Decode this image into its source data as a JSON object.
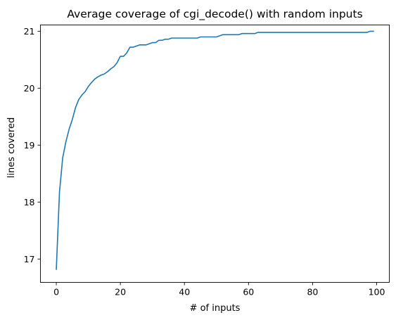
{
  "chart_data": {
    "type": "line",
    "title": "Average coverage of cgi_decode() with random inputs",
    "xlabel": "# of inputs",
    "ylabel": "lines covered",
    "xlim": [
      -4.95,
      103.95
    ],
    "ylim": [
      16.59,
      21.11
    ],
    "grid": false,
    "x_ticks": [
      0,
      20,
      40,
      60,
      80,
      100
    ],
    "y_ticks": [
      17,
      18,
      19,
      20,
      21
    ],
    "series": [
      {
        "color": "#1f77b4",
        "x": [
          0,
          1,
          2,
          3,
          4,
          5,
          6,
          7,
          8,
          9,
          10,
          11,
          12,
          13,
          14,
          15,
          16,
          17,
          18,
          19,
          20,
          21,
          22,
          23,
          24,
          25,
          26,
          27,
          28,
          29,
          30,
          31,
          32,
          33,
          34,
          35,
          36,
          37,
          38,
          39,
          40,
          41,
          42,
          43,
          44,
          45,
          46,
          47,
          48,
          49,
          50,
          51,
          52,
          53,
          54,
          55,
          56,
          57,
          58,
          59,
          60,
          61,
          62,
          63,
          64,
          65,
          66,
          67,
          68,
          69,
          70,
          71,
          72,
          73,
          74,
          75,
          76,
          77,
          78,
          79,
          80,
          81,
          82,
          83,
          84,
          85,
          86,
          87,
          88,
          89,
          90,
          91,
          92,
          93,
          94,
          95,
          96,
          97,
          98,
          99
        ],
        "y": [
          16.82,
          18.18,
          18.78,
          19.06,
          19.28,
          19.45,
          19.66,
          19.8,
          19.88,
          19.94,
          20.03,
          20.1,
          20.16,
          20.2,
          20.23,
          20.25,
          20.29,
          20.34,
          20.38,
          20.45,
          20.56,
          20.56,
          20.62,
          20.72,
          20.72,
          20.74,
          20.76,
          20.76,
          20.76,
          20.78,
          20.8,
          20.8,
          20.84,
          20.84,
          20.86,
          20.86,
          20.88,
          20.88,
          20.88,
          20.88,
          20.88,
          20.88,
          20.88,
          20.88,
          20.88,
          20.9,
          20.9,
          20.9,
          20.9,
          20.9,
          20.9,
          20.92,
          20.94,
          20.94,
          20.94,
          20.94,
          20.94,
          20.94,
          20.96,
          20.96,
          20.96,
          20.96,
          20.96,
          20.98,
          20.98,
          20.98,
          20.98,
          20.98,
          20.98,
          20.98,
          20.98,
          20.98,
          20.98,
          20.98,
          20.98,
          20.98,
          20.98,
          20.98,
          20.98,
          20.98,
          20.98,
          20.98,
          20.98,
          20.98,
          20.98,
          20.98,
          20.98,
          20.98,
          20.98,
          20.98,
          20.98,
          20.98,
          20.98,
          20.98,
          20.98,
          20.98,
          20.98,
          20.98,
          21.0,
          21.0
        ]
      }
    ]
  }
}
